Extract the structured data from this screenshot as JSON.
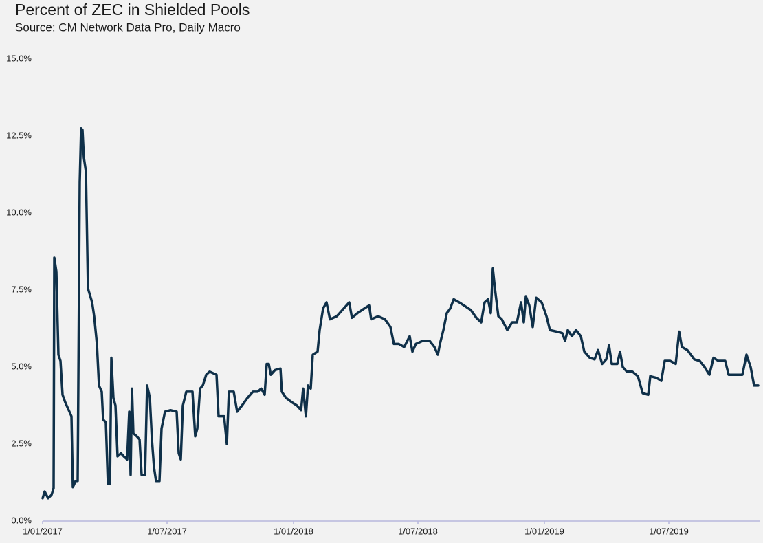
{
  "chart_data": {
    "type": "line",
    "title": "Percent of ZEC in Shielded Pools",
    "subtitle": "Source: CM Network Data Pro, Daily Macro",
    "color": "#0f3049",
    "grid": false,
    "xlim": [
      "2017-01-01",
      "2019-11-10"
    ],
    "xticks": [
      {
        "value": "2017-01-01",
        "label": "1/01/2017"
      },
      {
        "value": "2017-07-01",
        "label": "1/07/2017"
      },
      {
        "value": "2018-01-01",
        "label": "1/01/2018"
      },
      {
        "value": "2018-07-01",
        "label": "1/07/2018"
      },
      {
        "value": "2019-01-01",
        "label": "1/01/2019"
      },
      {
        "value": "2019-07-01",
        "label": "1/07/2019"
      }
    ],
    "ylim": [
      0,
      15
    ],
    "yticks": [
      {
        "value": 0,
        "label": "0.0%"
      },
      {
        "value": 2.5,
        "label": "2.5%"
      },
      {
        "value": 5,
        "label": "5.0%"
      },
      {
        "value": 7.5,
        "label": "7.5%"
      },
      {
        "value": 10,
        "label": "10.0%"
      },
      {
        "value": 12.5,
        "label": "12.5%"
      },
      {
        "value": 15,
        "label": "15.0%"
      }
    ],
    "x": [
      "2017-01-01",
      "2017-01-04",
      "2017-01-09",
      "2017-01-14",
      "2017-01-17",
      "2017-01-18",
      "2017-01-21",
      "2017-01-24",
      "2017-01-27",
      "2017-01-30",
      "2017-02-03",
      "2017-02-08",
      "2017-02-12",
      "2017-02-14",
      "2017-02-18",
      "2017-02-21",
      "2017-02-24",
      "2017-02-26",
      "2017-02-28",
      "2017-03-02",
      "2017-03-05",
      "2017-03-08",
      "2017-03-14",
      "2017-03-17",
      "2017-03-21",
      "2017-03-24",
      "2017-03-28",
      "2017-03-30",
      "2017-04-03",
      "2017-04-06",
      "2017-04-09",
      "2017-04-11",
      "2017-04-14",
      "2017-04-17",
      "2017-04-20",
      "2017-04-25",
      "2017-04-29",
      "2017-05-04",
      "2017-05-07",
      "2017-05-09",
      "2017-05-11",
      "2017-05-13",
      "2017-05-18",
      "2017-05-22",
      "2017-05-25",
      "2017-05-30",
      "2017-06-02",
      "2017-06-06",
      "2017-06-09",
      "2017-06-12",
      "2017-06-15",
      "2017-06-20",
      "2017-06-23",
      "2017-06-28",
      "2017-07-06",
      "2017-07-15",
      "2017-07-18",
      "2017-07-21",
      "2017-07-24",
      "2017-07-29",
      "2017-08-07",
      "2017-08-11",
      "2017-08-14",
      "2017-08-18",
      "2017-08-22",
      "2017-08-27",
      "2017-09-01",
      "2017-09-11",
      "2017-09-14",
      "2017-09-22",
      "2017-09-26",
      "2017-09-29",
      "2017-10-06",
      "2017-10-11",
      "2017-10-18",
      "2017-10-26",
      "2017-11-03",
      "2017-11-10",
      "2017-11-15",
      "2017-11-20",
      "2017-11-23",
      "2017-11-26",
      "2017-11-29",
      "2017-12-05",
      "2017-12-13",
      "2017-12-15",
      "2017-12-21",
      "2017-12-30",
      "2018-01-06",
      "2018-01-12",
      "2018-01-15",
      "2018-01-19",
      "2018-01-22",
      "2018-01-26",
      "2018-01-29",
      "2018-02-05",
      "2018-02-08",
      "2018-02-13",
      "2018-02-18",
      "2018-02-23",
      "2018-03-05",
      "2018-03-15",
      "2018-03-23",
      "2018-03-27",
      "2018-04-04",
      "2018-04-14",
      "2018-04-21",
      "2018-04-24",
      "2018-05-04",
      "2018-05-14",
      "2018-05-22",
      "2018-05-27",
      "2018-06-03",
      "2018-06-11",
      "2018-06-19",
      "2018-06-23",
      "2018-06-28",
      "2018-07-08",
      "2018-07-18",
      "2018-07-25",
      "2018-07-30",
      "2018-08-02",
      "2018-08-07",
      "2018-08-12",
      "2018-08-17",
      "2018-08-22",
      "2018-08-30",
      "2018-09-06",
      "2018-09-16",
      "2018-09-24",
      "2018-10-01",
      "2018-10-06",
      "2018-10-11",
      "2018-10-15",
      "2018-10-18",
      "2018-10-21",
      "2018-10-26",
      "2018-10-31",
      "2018-11-08",
      "2018-11-15",
      "2018-11-22",
      "2018-11-28",
      "2018-12-02",
      "2018-12-05",
      "2018-12-10",
      "2018-12-15",
      "2018-12-20",
      "2018-12-28",
      "2019-01-04",
      "2019-01-09",
      "2019-01-19",
      "2019-01-27",
      "2019-01-31",
      "2019-02-04",
      "2019-02-10",
      "2019-02-16",
      "2019-02-23",
      "2019-02-28",
      "2019-03-08",
      "2019-03-15",
      "2019-03-20",
      "2019-03-26",
      "2019-04-01",
      "2019-04-05",
      "2019-04-09",
      "2019-04-17",
      "2019-04-21",
      "2019-04-25",
      "2019-05-01",
      "2019-05-09",
      "2019-05-17",
      "2019-05-24",
      "2019-06-01",
      "2019-06-04",
      "2019-06-13",
      "2019-06-20",
      "2019-06-25",
      "2019-07-03",
      "2019-07-11",
      "2019-07-16",
      "2019-07-20",
      "2019-07-28",
      "2019-08-07",
      "2019-08-15",
      "2019-08-22",
      "2019-08-29",
      "2019-09-04",
      "2019-09-11",
      "2019-09-21",
      "2019-09-26",
      "2019-10-06",
      "2019-10-16",
      "2019-10-22",
      "2019-10-28",
      "2019-11-02",
      "2019-11-08"
    ],
    "values": [
      0.74,
      0.96,
      0.74,
      0.85,
      1.07,
      8.55,
      8.1,
      5.4,
      5.2,
      4.1,
      3.85,
      3.6,
      3.4,
      1.1,
      1.3,
      1.3,
      11.0,
      12.75,
      12.7,
      11.8,
      11.35,
      7.55,
      7.1,
      6.65,
      5.75,
      4.4,
      4.2,
      3.3,
      3.2,
      1.2,
      1.2,
      5.3,
      4.0,
      3.75,
      2.1,
      2.2,
      2.1,
      2.0,
      3.55,
      1.5,
      4.3,
      2.85,
      2.75,
      2.65,
      1.5,
      1.5,
      4.4,
      4.0,
      2.65,
      1.75,
      1.3,
      1.3,
      3.0,
      3.55,
      3.6,
      3.55,
      2.2,
      2.0,
      3.75,
      4.2,
      4.2,
      2.75,
      3.0,
      4.3,
      4.4,
      4.75,
      4.85,
      4.75,
      3.4,
      3.4,
      2.5,
      4.2,
      4.2,
      3.55,
      3.75,
      4.0,
      4.2,
      4.2,
      4.3,
      4.1,
      5.1,
      5.1,
      4.75,
      4.9,
      4.95,
      4.2,
      4.0,
      3.85,
      3.75,
      3.6,
      4.3,
      3.4,
      4.4,
      4.3,
      5.4,
      5.5,
      6.2,
      6.9,
      7.1,
      6.55,
      6.65,
      6.9,
      7.1,
      6.6,
      6.75,
      6.9,
      7.0,
      6.55,
      6.65,
      6.55,
      6.3,
      5.75,
      5.75,
      5.65,
      6.0,
      5.5,
      5.75,
      5.85,
      5.85,
      5.65,
      5.4,
      5.75,
      6.2,
      6.75,
      6.9,
      7.2,
      7.1,
      7.0,
      6.85,
      6.6,
      6.45,
      7.1,
      7.2,
      6.75,
      8.2,
      7.55,
      6.65,
      6.55,
      6.2,
      6.45,
      6.45,
      7.1,
      6.45,
      7.3,
      7.0,
      6.3,
      7.25,
      7.1,
      6.65,
      6.2,
      6.15,
      6.1,
      5.85,
      6.2,
      6.0,
      6.2,
      6.0,
      5.5,
      5.3,
      5.25,
      5.55,
      5.1,
      5.25,
      5.7,
      5.1,
      5.1,
      5.5,
      5.0,
      4.85,
      4.85,
      4.7,
      4.15,
      4.1,
      4.7,
      4.65,
      4.55,
      5.2,
      5.2,
      5.1,
      6.15,
      5.65,
      5.55,
      5.25,
      5.2,
      5.0,
      4.75,
      5.3,
      5.2,
      5.2,
      4.75,
      4.75,
      4.75,
      5.4,
      5.0,
      4.4,
      4.4
    ]
  }
}
